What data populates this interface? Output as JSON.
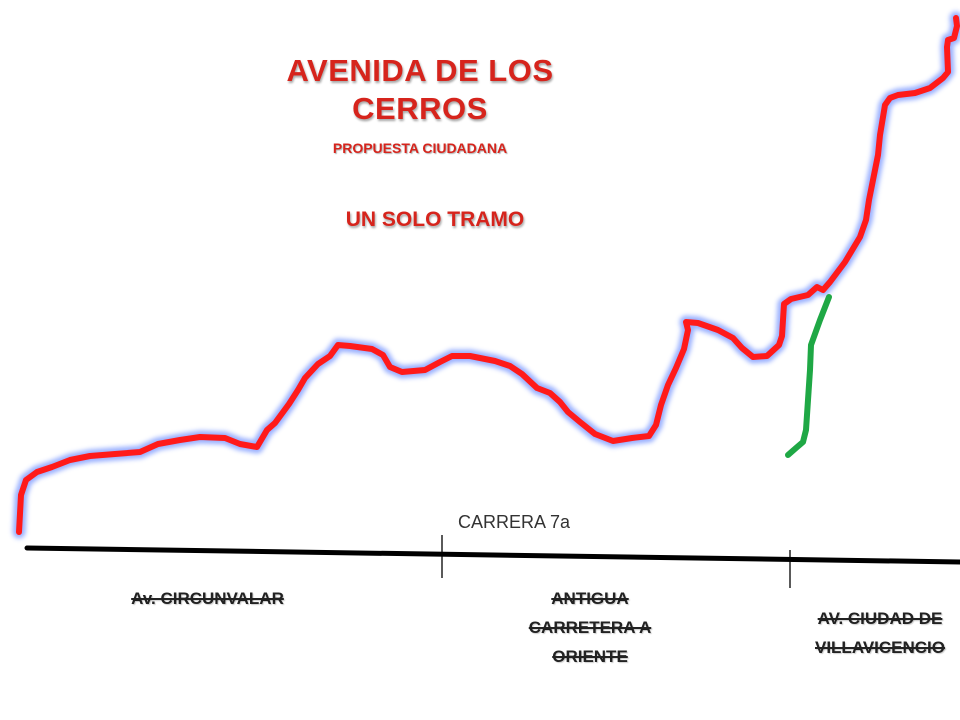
{
  "title": "AVENIDA DE LOS CERROS",
  "subtitle": "PROPUESTA CIUDADANA",
  "tramo": "UN SOLO TRAMO",
  "carrera_label": "CARRERA 7a",
  "road_labels": [
    "Av. CIRCUNVALAR",
    "ANTIGUA CARRETERA A ORIENTE",
    "AV. CIUDAD DE VILLAVICENCIO"
  ],
  "colors": {
    "route": "#ff1a1a",
    "route_glow": "#8fa8ff",
    "branch": "#1fa845",
    "baseline": "#000000",
    "title": "#d6241c"
  }
}
